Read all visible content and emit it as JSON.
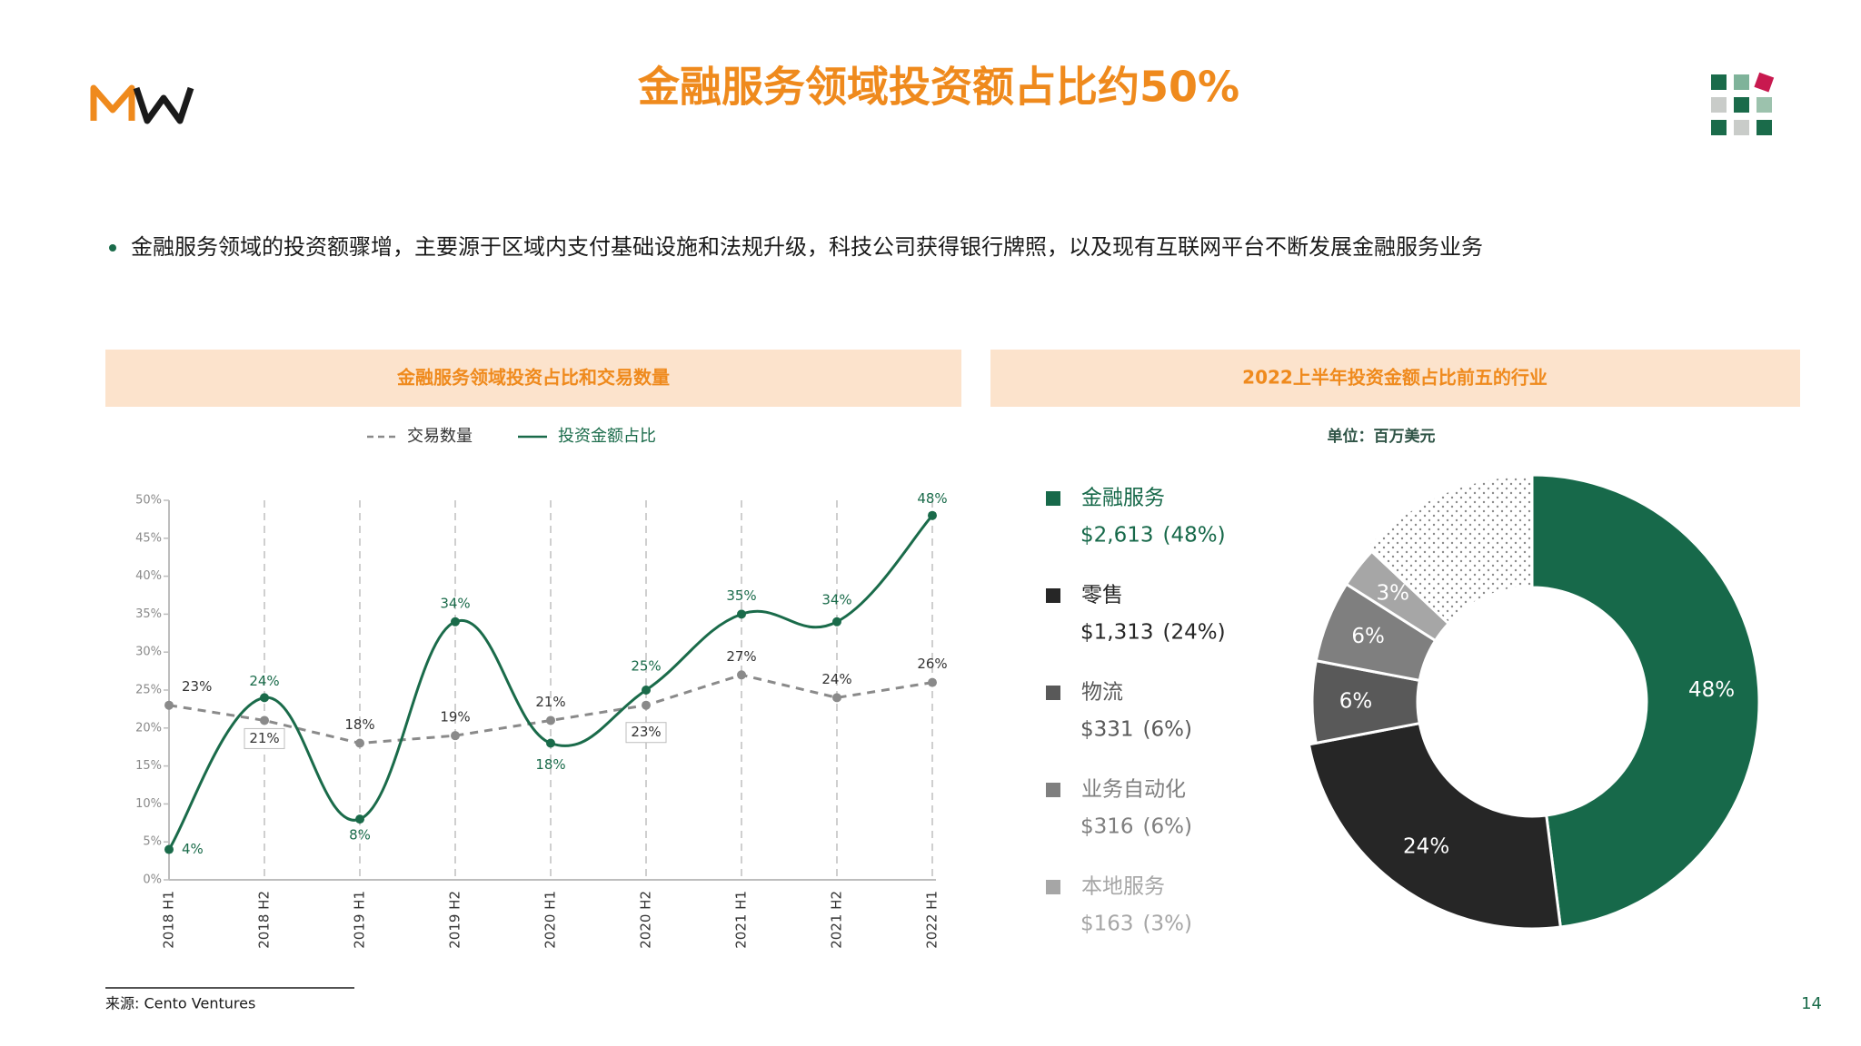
{
  "header": {
    "title": "金融服务领域投资额占比约50%"
  },
  "bullet": "金融服务领域的投资额骤增，主要源于区域内支付基础设施和法规升级，科技公司获得银行牌照，以及现有互联网平台不断发展金融服务业务",
  "chart_data": [
    {
      "type": "line",
      "title": "金融服务领域投资占比和交易数量",
      "categories": [
        "2018 H1",
        "2018 H2",
        "2019 H1",
        "2019 H2",
        "2020 H1",
        "2020 H2",
        "2021 H1",
        "2021 H2",
        "2022 H1"
      ],
      "series": [
        {
          "name": "交易数量",
          "color": "#8a8a8a",
          "dashed": true,
          "values": [
            23,
            21,
            18,
            19,
            21,
            23,
            27,
            24,
            26
          ],
          "value_labels": [
            "23%",
            "21%",
            "18%",
            "19%",
            "21%",
            "23%",
            "27%",
            "24%",
            "26%"
          ]
        },
        {
          "name": "投资金额占比",
          "color": "#1a6b4a",
          "dashed": false,
          "values": [
            4,
            24,
            8,
            34,
            18,
            25,
            35,
            34,
            48
          ],
          "value_labels": [
            "4%",
            "24%",
            "8%",
            "34%",
            "18%",
            "25%",
            "35%",
            "34%",
            "48%"
          ]
        }
      ],
      "ylim": [
        0,
        50
      ],
      "yticks": [
        {
          "value": 0,
          "label": "0%"
        },
        {
          "value": 5,
          "label": "5%"
        },
        {
          "value": 10,
          "label": "10%"
        },
        {
          "value": 15,
          "label": "15%"
        },
        {
          "value": 20,
          "label": "20%"
        },
        {
          "value": 25,
          "label": "25%"
        },
        {
          "value": 30,
          "label": "30%"
        },
        {
          "value": 35,
          "label": "35%"
        },
        {
          "value": 40,
          "label": "40%"
        },
        {
          "value": 45,
          "label": "45%"
        },
        {
          "value": 50,
          "label": "50%"
        }
      ],
      "grid": true
    },
    {
      "type": "donut",
      "title": "2022上半年投资金额占比前五的行业",
      "subtitle": "单位：百万美元",
      "categories": [
        "金融服务",
        "零售",
        "物流",
        "业务自动化",
        "本地服务",
        null
      ],
      "values": [
        48,
        24,
        6,
        6,
        3,
        13
      ],
      "value_labels": [
        "48%",
        "24%",
        "6%",
        "6%",
        "3%",
        null
      ],
      "amount_labels": [
        "$2,613",
        "$1,313",
        "$331",
        "$316",
        "$163",
        null
      ],
      "legend_value_labels": [
        "(48%)",
        "(24%)",
        "(6%)",
        "(6%)",
        "(3%)",
        null
      ],
      "colors": [
        "#17694a",
        "#262626",
        "#595959",
        "#7f7f7f",
        "#a6a6a6",
        "dots"
      ]
    }
  ],
  "footer": {
    "source": "来源: Cento Ventures",
    "page": "14"
  }
}
